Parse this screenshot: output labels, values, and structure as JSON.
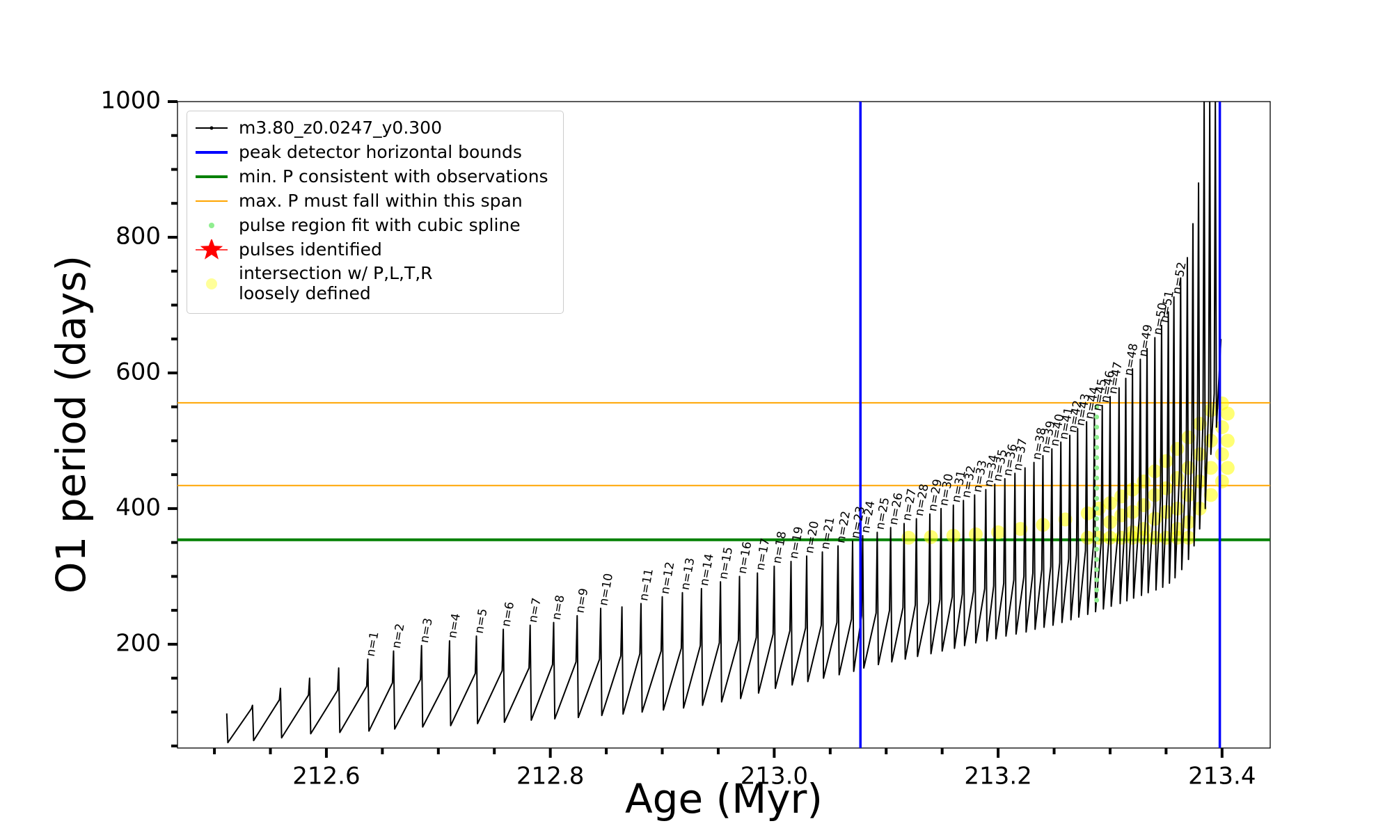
{
  "chart_data": {
    "type": "line",
    "x_label": "Age (Myr)",
    "y_label": "O1 period (days)",
    "xlim": [
      212.467,
      213.443
    ],
    "ylim": [
      47,
      1000
    ],
    "xticks": [
      212.6,
      212.8,
      {
        "value": 213,
        "label": "213.0"
      },
      213.2,
      213.4
    ],
    "yticks": [
      200,
      400,
      600,
      800,
      1000
    ],
    "xminorticks": [
      212.5,
      212.55,
      212.65,
      212.7,
      212.75,
      212.85,
      212.9,
      212.95,
      213.05,
      213.1,
      213.15,
      213.25,
      213.3,
      213.35
    ],
    "yminorticks": [
      50,
      100,
      150,
      250,
      300,
      350,
      450,
      500,
      550,
      650,
      700,
      750,
      850,
      900,
      950
    ],
    "legend": "upper left",
    "series": [
      {
        "name": "m3.80_z0.0247_y0.300",
        "color": "#000000",
        "kind": "line",
        "x": [
          212.511,
          212.512,
          212.533,
          212.534,
          212.535,
          212.558,
          212.559,
          212.56,
          212.584,
          212.585,
          212.586,
          212.61,
          212.611,
          212.612,
          212.636,
          212.637,
          212.638,
          212.659,
          212.66,
          212.661,
          212.684,
          212.685,
          212.686,
          212.709,
          212.71,
          212.711,
          212.733,
          212.734,
          212.735,
          212.757,
          212.758,
          212.759,
          212.781,
          212.782,
          212.783,
          212.802,
          212.803,
          212.804,
          212.823,
          212.824,
          212.825,
          212.844,
          212.845,
          212.846,
          212.863,
          212.864,
          212.865,
          212.88,
          212.881,
          212.882,
          212.899,
          212.9,
          212.901,
          212.917,
          212.918,
          212.919,
          212.934,
          212.935,
          212.936,
          212.951,
          212.952,
          212.953,
          212.968,
          212.969,
          212.97,
          212.984,
          212.985,
          212.986,
          212.999,
          213.0,
          213.001,
          213.014,
          213.015,
          213.016,
          213.028,
          213.029,
          213.03,
          213.042,
          213.043,
          213.044,
          213.056,
          213.057,
          213.058,
          213.069,
          213.07,
          213.071,
          213.078,
          213.079,
          213.08,
          213.091,
          213.092,
          213.093,
          213.103,
          213.104,
          213.105,
          213.115,
          213.116,
          213.117,
          213.126,
          213.127,
          213.128,
          213.138,
          213.139,
          213.14,
          213.148,
          213.149,
          213.15,
          213.159,
          213.16,
          213.161,
          213.168,
          213.169,
          213.17,
          213.178,
          213.179,
          213.18,
          213.188,
          213.189,
          213.19,
          213.196,
          213.197,
          213.198,
          213.205,
          213.206,
          213.207,
          213.214,
          213.215,
          213.216,
          213.223,
          213.224,
          213.225,
          213.231,
          213.232,
          213.233,
          213.239,
          213.24,
          213.241,
          213.247,
          213.248,
          213.249,
          213.255,
          213.256,
          213.257,
          213.263,
          213.264,
          213.265,
          213.27,
          213.271,
          213.272,
          213.278,
          213.279,
          213.28,
          213.285,
          213.286,
          213.287,
          213.292,
          213.293,
          213.294,
          213.299,
          213.3,
          213.301,
          213.307,
          213.308,
          213.309,
          213.313,
          213.314,
          213.315,
          213.319,
          213.32,
          213.321,
          213.326,
          213.327,
          213.328,
          213.332,
          213.333,
          213.334,
          213.339,
          213.34,
          213.341,
          213.345,
          213.346,
          213.347,
          213.351,
          213.352,
          213.353,
          213.356,
          213.357,
          213.358,
          213.362,
          213.363,
          213.364,
          213.368,
          213.369,
          213.37,
          213.373,
          213.374,
          213.375,
          213.378,
          213.379,
          213.38,
          213.383,
          213.384,
          213.385,
          213.388,
          213.389,
          213.39,
          213.393,
          213.394,
          213.395,
          213.399
        ],
        "values": [
          98,
          55,
          105,
          110,
          58,
          118,
          135,
          62,
          125,
          150,
          68,
          132,
          165,
          70,
          138,
          178,
          72,
          143,
          190,
          75,
          148,
          198,
          78,
          152,
          205,
          80,
          157,
          212,
          83,
          161,
          222,
          85,
          165,
          228,
          88,
          170,
          232,
          90,
          174,
          242,
          92,
          178,
          253,
          95,
          183,
          255,
          97,
          186,
          260,
          100,
          190,
          270,
          103,
          194,
          276,
          106,
          198,
          282,
          110,
          202,
          292,
          115,
          206,
          300,
          120,
          210,
          305,
          128,
          215,
          315,
          135,
          220,
          322,
          140,
          224,
          330,
          145,
          228,
          336,
          150,
          232,
          345,
          155,
          237,
          352,
          160,
          242,
          360,
          165,
          246,
          365,
          170,
          250,
          372,
          174,
          254,
          378,
          178,
          258,
          385,
          182,
          262,
          392,
          186,
          266,
          400,
          190,
          270,
          405,
          194,
          274,
          412,
          198,
          278,
          420,
          202,
          282,
          428,
          205,
          286,
          436,
          208,
          290,
          444,
          212,
          295,
          452,
          215,
          300,
          460,
          218,
          305,
          468,
          222,
          310,
          478,
          225,
          315,
          488,
          228,
          320,
          498,
          232,
          326,
          508,
          236,
          332,
          518,
          240,
          338,
          528,
          244,
          344,
          540,
          248,
          350,
          552,
          252,
          356,
          565,
          256,
          363,
          578,
          260,
          370,
          592,
          264,
          378,
          606,
          268,
          386,
          620,
          272,
          395,
          636,
          276,
          405,
          652,
          280,
          415,
          670,
          284,
          427,
          690,
          290,
          440,
          712,
          298,
          455,
          740,
          310,
          472,
          770,
          325,
          490,
          820,
          345,
          510,
          880,
          370,
          530,
          1000,
          400,
          550,
          1000,
          480,
          570,
          1000,
          520,
          650
        ]
      },
      {
        "name": "peak detector horizontal bounds",
        "color": "#0000ff",
        "kind": "vline",
        "x": [
          213.077,
          213.398
        ]
      },
      {
        "name": "min. P consistent with observations",
        "color": "#008000",
        "kind": "hline",
        "values": [
          354
        ]
      },
      {
        "name": "max. P must fall within this span",
        "color": "#ffa500",
        "kind": "hline",
        "values": [
          434,
          556
        ]
      },
      {
        "name": "pulse region fit with cubic spline",
        "color": "#90ee90",
        "kind": "scatter",
        "x": [
          213.288,
          213.288,
          213.288,
          213.288,
          213.288,
          213.288,
          213.288,
          213.288,
          213.288,
          213.288,
          213.288,
          213.288,
          213.288,
          213.288,
          213.288,
          213.288,
          213.288,
          213.288,
          213.288,
          213.288
        ],
        "values": [
          265,
          280,
          295,
          310,
          325,
          340,
          355,
          370,
          385,
          400,
          415,
          430,
          445,
          460,
          475,
          490,
          505,
          520,
          535,
          550
        ]
      },
      {
        "name": "pulses identified",
        "color": "#ff0000",
        "kind": "star",
        "x": [],
        "values": []
      },
      {
        "name": "intersection w/ P,L,T,R\nloosely defined",
        "color": "#ffff00",
        "kind": "bubble",
        "x": [
          213.12,
          213.14,
          213.16,
          213.18,
          213.2,
          213.22,
          213.24,
          213.26,
          213.28,
          213.29,
          213.3,
          213.31,
          213.32,
          213.33,
          213.34,
          213.35,
          213.36,
          213.37,
          213.38,
          213.39,
          213.4,
          213.28,
          213.29,
          213.3,
          213.31,
          213.32,
          213.33,
          213.34,
          213.35,
          213.36,
          213.37,
          213.3,
          213.31,
          213.32,
          213.33,
          213.34,
          213.35,
          213.36,
          213.37,
          213.38,
          213.39,
          213.4,
          213.405,
          213.36,
          213.37,
          213.38,
          213.39,
          213.4,
          213.405,
          213.34,
          213.35,
          213.33,
          213.32,
          213.36,
          213.37,
          213.38,
          213.39,
          213.4,
          213.405
        ],
        "values": [
          357,
          358,
          360,
          362,
          365,
          370,
          376,
          384,
          393,
          400,
          408,
          418,
          428,
          440,
          455,
          470,
          488,
          505,
          525,
          545,
          555,
          357,
          357,
          357,
          357,
          357,
          357,
          357,
          357,
          357,
          357,
          380,
          390,
          395,
          405,
          420,
          430,
          445,
          460,
          480,
          500,
          520,
          540,
          400,
          420,
          440,
          460,
          480,
          500,
          385,
          395,
          370,
          365,
          370,
          380,
          400,
          420,
          440,
          460
        ]
      }
    ],
    "annotations": [
      {
        "text": "n=1",
        "x": 212.637,
        "y": 178
      },
      {
        "text": "n=2",
        "x": 212.66,
        "y": 190
      },
      {
        "text": "n=3",
        "x": 212.685,
        "y": 198
      },
      {
        "text": "n=4",
        "x": 212.71,
        "y": 205
      },
      {
        "text": "n=5",
        "x": 212.734,
        "y": 212
      },
      {
        "text": "n=6",
        "x": 212.758,
        "y": 222
      },
      {
        "text": "n=7",
        "x": 212.782,
        "y": 228
      },
      {
        "text": "n=8",
        "x": 212.803,
        "y": 232
      },
      {
        "text": "n=9",
        "x": 212.824,
        "y": 242
      },
      {
        "text": "n=10",
        "x": 212.845,
        "y": 253
      },
      {
        "text": "n=11",
        "x": 212.881,
        "y": 260
      },
      {
        "text": "n=12",
        "x": 212.9,
        "y": 270
      },
      {
        "text": "n=13",
        "x": 212.918,
        "y": 276
      },
      {
        "text": "n=14",
        "x": 212.935,
        "y": 282
      },
      {
        "text": "n=15",
        "x": 212.952,
        "y": 292
      },
      {
        "text": "n=16",
        "x": 212.969,
        "y": 300
      },
      {
        "text": "n=17",
        "x": 212.985,
        "y": 305
      },
      {
        "text": "n=18",
        "x": 213,
        "y": 315
      },
      {
        "text": "n=19",
        "x": 213.015,
        "y": 322
      },
      {
        "text": "n=20",
        "x": 213.029,
        "y": 330
      },
      {
        "text": "n=21",
        "x": 213.043,
        "y": 336
      },
      {
        "text": "n=22",
        "x": 213.057,
        "y": 345
      },
      {
        "text": "n=23",
        "x": 213.07,
        "y": 352
      },
      {
        "text": "n=24",
        "x": 213.079,
        "y": 360
      },
      {
        "text": "n=25",
        "x": 213.092,
        "y": 365
      },
      {
        "text": "n=26",
        "x": 213.104,
        "y": 372
      },
      {
        "text": "n=27",
        "x": 213.116,
        "y": 378
      },
      {
        "text": "n=28",
        "x": 213.127,
        "y": 385
      },
      {
        "text": "n=29",
        "x": 213.139,
        "y": 392
      },
      {
        "text": "n=30",
        "x": 213.149,
        "y": 400
      },
      {
        "text": "n=31",
        "x": 213.16,
        "y": 405
      },
      {
        "text": "n=32",
        "x": 213.169,
        "y": 412
      },
      {
        "text": "n=33",
        "x": 213.179,
        "y": 420
      },
      {
        "text": "n=34",
        "x": 213.189,
        "y": 428
      },
      {
        "text": "n=35",
        "x": 213.197,
        "y": 436
      },
      {
        "text": "n=36",
        "x": 213.206,
        "y": 444
      },
      {
        "text": "n=37",
        "x": 213.215,
        "y": 452
      },
      {
        "text": "n=38",
        "x": 213.232,
        "y": 468
      },
      {
        "text": "n=39",
        "x": 213.24,
        "y": 478
      },
      {
        "text": "n=40",
        "x": 213.248,
        "y": 488
      },
      {
        "text": "n=41",
        "x": 213.256,
        "y": 498
      },
      {
        "text": "n=42",
        "x": 213.264,
        "y": 508
      },
      {
        "text": "n=43",
        "x": 213.271,
        "y": 518
      },
      {
        "text": "n=44",
        "x": 213.279,
        "y": 528
      },
      {
        "text": "n=45",
        "x": 213.286,
        "y": 540
      },
      {
        "text": "n=46",
        "x": 213.293,
        "y": 552
      },
      {
        "text": "n=47",
        "x": 213.3,
        "y": 565
      },
      {
        "text": "n=48",
        "x": 213.314,
        "y": 592
      },
      {
        "text": "n=49",
        "x": 213.327,
        "y": 620
      },
      {
        "text": "n=50",
        "x": 213.34,
        "y": 652
      },
      {
        "text": "n=51",
        "x": 213.346,
        "y": 670
      },
      {
        "text": "n=52",
        "x": 213.357,
        "y": 712
      }
    ]
  }
}
